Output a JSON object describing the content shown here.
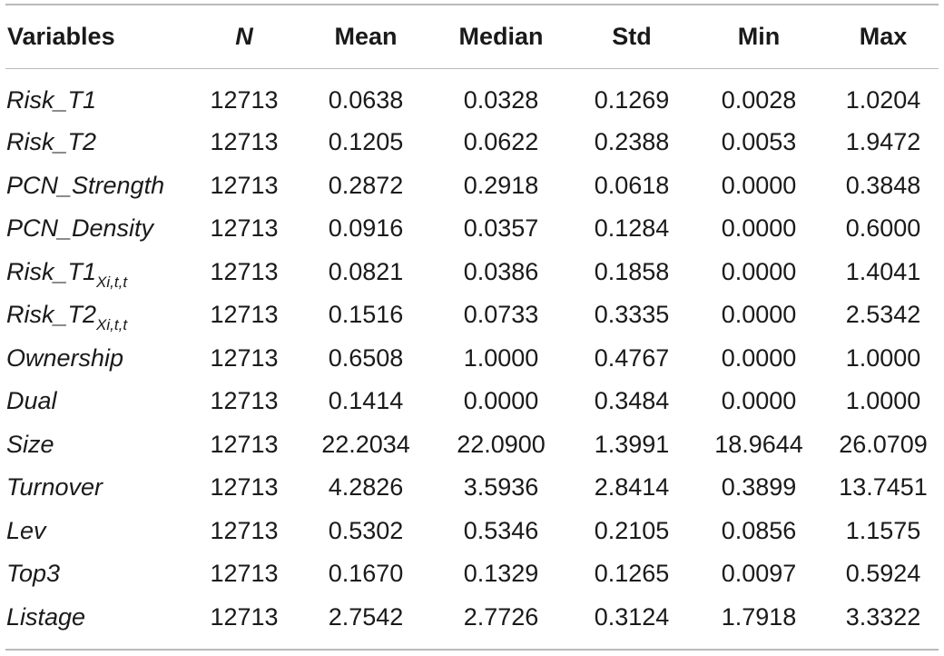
{
  "table": {
    "headers": [
      "Variables",
      "N",
      "Mean",
      "Median",
      "Std",
      "Min",
      "Max"
    ],
    "rows": [
      {
        "variable": "Risk_T1",
        "sub": "",
        "N": "12713",
        "mean": "0.0638",
        "median": "0.0328",
        "std": "0.1269",
        "min": "0.0028",
        "max": "1.0204"
      },
      {
        "variable": "Risk_T2",
        "sub": "",
        "N": "12713",
        "mean": "0.1205",
        "median": "0.0622",
        "std": "0.2388",
        "min": "0.0053",
        "max": "1.9472"
      },
      {
        "variable": "PCN_Strength",
        "sub": "",
        "N": "12713",
        "mean": "0.2872",
        "median": "0.2918",
        "std": "0.0618",
        "min": "0.0000",
        "max": "0.3848"
      },
      {
        "variable": "PCN_Density",
        "sub": "",
        "N": "12713",
        "mean": "0.0916",
        "median": "0.0357",
        "std": "0.1284",
        "min": "0.0000",
        "max": "0.6000"
      },
      {
        "variable": "Risk_T1",
        "sub": "Xi,t,t",
        "N": "12713",
        "mean": "0.0821",
        "median": "0.0386",
        "std": "0.1858",
        "min": "0.0000",
        "max": "1.4041"
      },
      {
        "variable": "Risk_T2",
        "sub": "Xi,t,t",
        "N": "12713",
        "mean": "0.1516",
        "median": "0.0733",
        "std": "0.3335",
        "min": "0.0000",
        "max": "2.5342"
      },
      {
        "variable": "Ownership",
        "sub": "",
        "N": "12713",
        "mean": "0.6508",
        "median": "1.0000",
        "std": "0.4767",
        "min": "0.0000",
        "max": "1.0000"
      },
      {
        "variable": "Dual",
        "sub": "",
        "N": "12713",
        "mean": "0.1414",
        "median": "0.0000",
        "std": "0.3484",
        "min": "0.0000",
        "max": "1.0000"
      },
      {
        "variable": "Size",
        "sub": "",
        "N": "12713",
        "mean": "22.2034",
        "median": "22.0900",
        "std": "1.3991",
        "min": "18.9644",
        "max": "26.0709"
      },
      {
        "variable": "Turnover",
        "sub": "",
        "N": "12713",
        "mean": "4.2826",
        "median": "3.5936",
        "std": "2.8414",
        "min": "0.3899",
        "max": "13.7451"
      },
      {
        "variable": "Lev",
        "sub": "",
        "N": "12713",
        "mean": "0.5302",
        "median": "0.5346",
        "std": "0.2105",
        "min": "0.0856",
        "max": "1.1575"
      },
      {
        "variable": "Top3",
        "sub": "",
        "N": "12713",
        "mean": "0.1670",
        "median": "0.1329",
        "std": "0.1265",
        "min": "0.0097",
        "max": "0.5924"
      },
      {
        "variable": "Listage",
        "sub": "",
        "N": "12713",
        "mean": "2.7542",
        "median": "2.7726",
        "std": "0.3124",
        "min": "1.7918",
        "max": "3.3322"
      }
    ]
  }
}
